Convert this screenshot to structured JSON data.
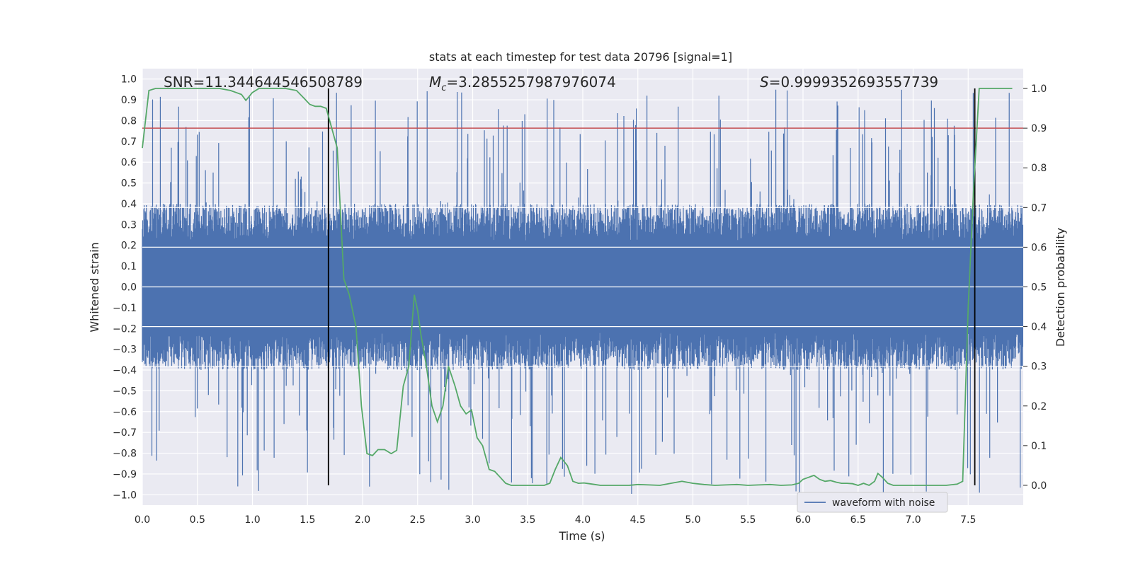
{
  "chart_data": {
    "type": "line",
    "title": "stats at each timestep for test data 20796 [signal=1]",
    "xlabel": "Time (s)",
    "ylabel_left": "Whitened strain",
    "ylabel_right": "Detection probability",
    "xlim": [
      0,
      8.0
    ],
    "ylim_left": [
      -1.05,
      1.05
    ],
    "ylim_right": [
      -0.05,
      1.05
    ],
    "x_ticks": [
      0.0,
      0.5,
      1.0,
      1.5,
      2.0,
      2.5,
      3.0,
      3.5,
      4.0,
      4.5,
      5.0,
      5.5,
      6.0,
      6.5,
      7.0,
      7.5
    ],
    "x_tick_labels": [
      "0.0",
      "0.5",
      "1.0",
      "1.5",
      "2.0",
      "2.5",
      "3.0",
      "3.5",
      "4.0",
      "4.5",
      "5.0",
      "5.5",
      "6.0",
      "6.5",
      "7.0",
      "7.5"
    ],
    "y_left_ticks": [
      -1.0,
      -0.9,
      -0.8,
      -0.7,
      -0.6,
      -0.5,
      -0.4,
      -0.3,
      -0.2,
      -0.1,
      0.0,
      0.1,
      0.2,
      0.3,
      0.4,
      0.5,
      0.6,
      0.7,
      0.8,
      0.9,
      1.0
    ],
    "y_left_tick_labels": [
      "−1.0",
      "−0.9",
      "−0.8",
      "−0.7",
      "−0.6",
      "−0.5",
      "−0.4",
      "−0.3",
      "−0.2",
      "−0.1",
      "0.0",
      "0.1",
      "0.2",
      "0.3",
      "0.4",
      "0.5",
      "0.6",
      "0.7",
      "0.8",
      "0.9",
      "1.0"
    ],
    "y_right_ticks": [
      0.0,
      0.1,
      0.2,
      0.3,
      0.4,
      0.5,
      0.6,
      0.7,
      0.8,
      0.9,
      1.0
    ],
    "y_right_tick_labels": [
      "0.0",
      "0.1",
      "0.2",
      "0.3",
      "0.4",
      "0.5",
      "0.6",
      "0.7",
      "0.8",
      "0.9",
      "1.0"
    ],
    "annotations": {
      "snr": "SNR=11.344644546508789",
      "mc_symbol": "M",
      "mc_sub": "c",
      "mc_value": "=3.2855257987976074",
      "s_symbol": "S",
      "s_value": "=0.9999352693557739"
    },
    "threshold": {
      "value": 0.9,
      "axis": "right",
      "color": "#c44e52"
    },
    "vertical_lines": [
      1.69,
      7.56
    ],
    "strain_series": {
      "name": "waveform with noise",
      "color": "#4c72b0",
      "axis": "left",
      "envelope_typical": [
        -0.4,
        0.4
      ],
      "peak_range": [
        -1.0,
        0.95
      ]
    },
    "probability_series": {
      "name": "detection probability",
      "color": "#55a868",
      "axis": "right",
      "x": [
        0.0,
        0.06,
        0.12,
        0.2,
        0.3,
        0.4,
        0.5,
        0.6,
        0.7,
        0.8,
        0.85,
        0.9,
        0.94,
        1.0,
        1.06,
        1.13,
        1.2,
        1.3,
        1.4,
        1.47,
        1.52,
        1.57,
        1.62,
        1.67,
        1.72,
        1.77,
        1.83,
        1.88,
        1.94,
        1.99,
        2.04,
        2.09,
        2.14,
        2.2,
        2.26,
        2.31,
        2.37,
        2.42,
        2.47,
        2.5,
        2.53,
        2.58,
        2.63,
        2.68,
        2.73,
        2.78,
        2.84,
        2.89,
        2.94,
        2.99,
        3.04,
        3.09,
        3.15,
        3.2,
        3.25,
        3.3,
        3.35,
        3.4,
        3.48,
        3.55,
        3.65,
        3.7,
        3.75,
        3.8,
        3.86,
        3.91,
        3.96,
        4.01,
        4.06,
        4.11,
        4.16,
        4.22,
        4.32,
        4.42,
        4.5,
        4.6,
        4.7,
        4.8,
        4.9,
        5.0,
        5.1,
        5.2,
        5.3,
        5.4,
        5.5,
        5.6,
        5.7,
        5.8,
        5.9,
        5.96,
        6.0,
        6.05,
        6.1,
        6.15,
        6.2,
        6.25,
        6.3,
        6.35,
        6.4,
        6.45,
        6.5,
        6.55,
        6.6,
        6.65,
        6.68,
        6.72,
        6.77,
        6.82,
        6.9,
        7.0,
        7.1,
        7.2,
        7.3,
        7.4,
        7.45,
        7.5,
        7.55,
        7.6,
        7.65,
        7.7,
        7.8,
        7.9
      ],
      "y": [
        0.85,
        0.995,
        1.0,
        1.0,
        1.0,
        1.0,
        1.0,
        1.0,
        1.0,
        0.995,
        0.99,
        0.985,
        0.97,
        0.99,
        1.0,
        1.0,
        1.0,
        1.0,
        0.995,
        0.975,
        0.96,
        0.955,
        0.955,
        0.95,
        0.9,
        0.85,
        0.52,
        0.48,
        0.4,
        0.2,
        0.08,
        0.075,
        0.09,
        0.09,
        0.08,
        0.088,
        0.25,
        0.3,
        0.48,
        0.44,
        0.38,
        0.3,
        0.2,
        0.16,
        0.2,
        0.3,
        0.25,
        0.2,
        0.18,
        0.19,
        0.12,
        0.1,
        0.04,
        0.035,
        0.02,
        0.005,
        0.0,
        0.0,
        0.0,
        0.0,
        0.0,
        0.005,
        0.04,
        0.07,
        0.05,
        0.01,
        0.005,
        0.006,
        0.004,
        0.002,
        0.0,
        0.0,
        0.0,
        0.0,
        0.002,
        0.001,
        0.0,
        0.005,
        0.01,
        0.005,
        0.002,
        0.0,
        0.001,
        0.002,
        0.0,
        0.001,
        0.002,
        0.0,
        0.001,
        0.005,
        0.015,
        0.02,
        0.025,
        0.015,
        0.01,
        0.012,
        0.008,
        0.005,
        0.005,
        0.004,
        0.0,
        0.005,
        0.0,
        0.01,
        0.03,
        0.02,
        0.005,
        0.0,
        0.0,
        0.0,
        0.0,
        0.0,
        0.0,
        0.003,
        0.01,
        0.45,
        0.75,
        1.0,
        1.0,
        1.0,
        1.0,
        1.0
      ]
    },
    "legend": {
      "placement": "lower-right",
      "entries": [
        "waveform with noise"
      ]
    }
  }
}
